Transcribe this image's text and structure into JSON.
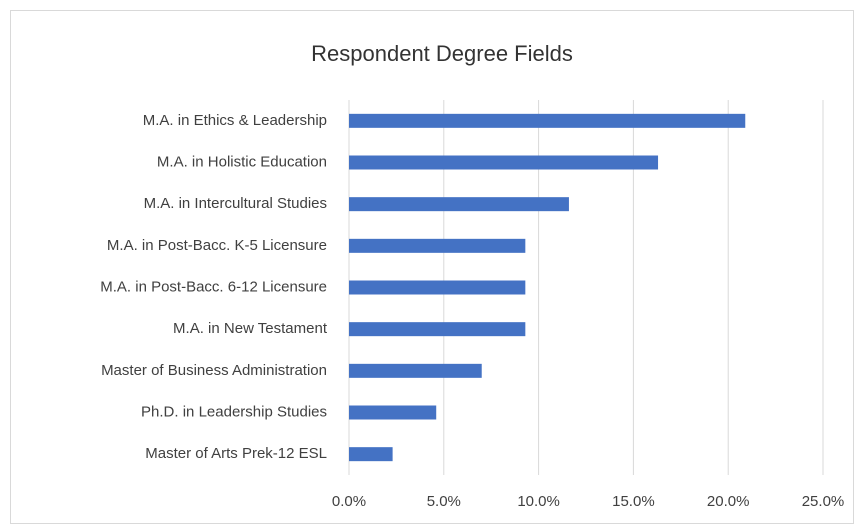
{
  "chart_data": {
    "type": "bar",
    "orientation": "horizontal",
    "title": "Respondent  Degree Fields",
    "categories": [
      "M.A. in Ethics & Leadership",
      "M.A. in Holistic Education",
      "M.A. in Intercultural Studies",
      "M.A. in Post-Bacc.  K-5 Licensure",
      "M.A. in Post-Bacc. 6-12 Licensure",
      "M.A. in New Testament",
      "Master of Business Administration",
      "Ph.D. in Leadership Studies",
      "Master of Arts Prek-12 ESL"
    ],
    "values": [
      20.9,
      16.3,
      11.6,
      9.3,
      9.3,
      9.3,
      7.0,
      4.6,
      2.3
    ],
    "color": "#4472c4",
    "xlim": [
      0,
      25
    ],
    "xticks": [
      {
        "value": 0,
        "label": "0.0%"
      },
      {
        "value": 5,
        "label": "5.0%"
      },
      {
        "value": 10,
        "label": "10.0%"
      },
      {
        "value": 15,
        "label": "15.0%"
      },
      {
        "value": 20,
        "label": "20.0%"
      },
      {
        "value": 25,
        "label": "25.0%"
      }
    ],
    "grid": true
  }
}
